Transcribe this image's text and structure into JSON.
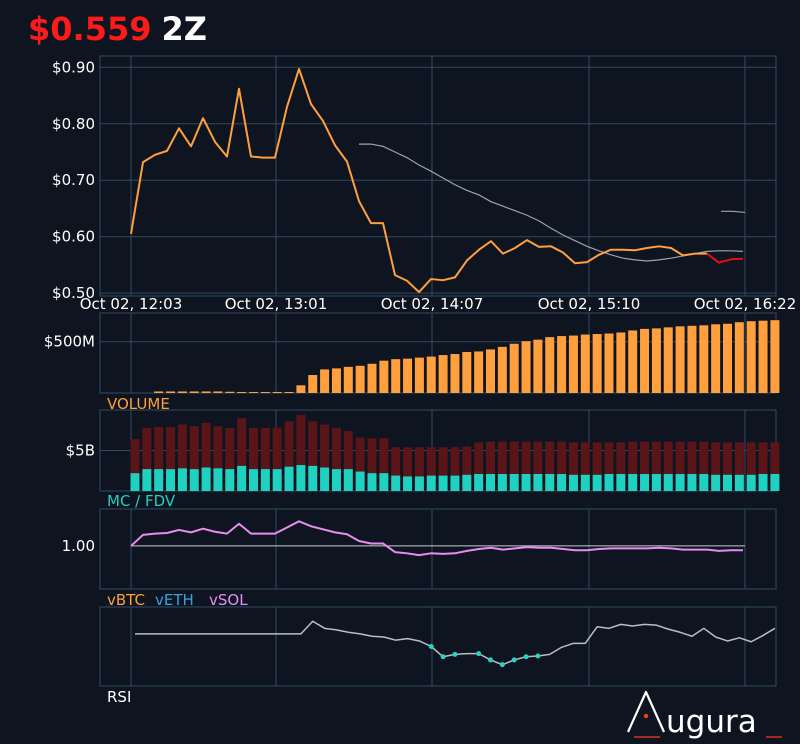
{
  "header": {
    "price": "$0.559",
    "ticker": "2Z"
  },
  "colors": {
    "background": "#0f1520",
    "grid": "#2e4a63",
    "price_line": "#ff9f3d",
    "price_line_recent": "#e01010",
    "moving_average": "#9aa3ad",
    "volume_bar": "#ff9f3d",
    "fdv_bar": "#5a1519",
    "mc_bar": "#1fd1c1",
    "vsol": "#e98cf0",
    "vbtc": "#ff9f3d",
    "veth": "#3aa0e0",
    "rsi_line": "#b8bec6",
    "rsi_dots": "#2ecfc4"
  },
  "panels": {
    "volume_label": "VOLUME",
    "mcfdv_label": "MC / FDV",
    "vbtc_label": "vBTC",
    "veth_label": "vETH",
    "vsol_label": "vSOL",
    "rsi_label": "RSI"
  },
  "logo": {
    "text": "ugura",
    "icon": "augura-a-icon"
  },
  "chart_data": [
    {
      "type": "line",
      "name": "price",
      "x_tick_labels": [
        "Oct 02, 12:03",
        "Oct 02, 13:01",
        "Oct 02, 14:07",
        "Oct 02, 15:10",
        "Oct 02, 16:22"
      ],
      "y_tick_labels": [
        "$0.50",
        "$0.60",
        "$0.70",
        "$0.80",
        "$0.90"
      ],
      "y_ticks": [
        0.5,
        0.6,
        0.7,
        0.8,
        0.9
      ],
      "ylim": [
        0.495,
        0.92
      ],
      "values": [
        0.605,
        0.732,
        0.745,
        0.752,
        0.792,
        0.76,
        0.81,
        0.768,
        0.742,
        0.862,
        0.742,
        0.74,
        0.74,
        0.83,
        0.897,
        0.835,
        0.805,
        0.762,
        0.733,
        0.663,
        0.624,
        0.624,
        0.532,
        0.522,
        0.502,
        0.525,
        0.523,
        0.528,
        0.558,
        0.577,
        0.592,
        0.57,
        0.58,
        0.594,
        0.582,
        0.583,
        0.572,
        0.553,
        0.555,
        0.568,
        0.577,
        0.577,
        0.576,
        0.58,
        0.583,
        0.58,
        0.567,
        0.57,
        0.57,
        0.554,
        0.56,
        0.561
      ],
      "recent_from_index": 48,
      "moving_average": [
        null,
        null,
        null,
        null,
        null,
        null,
        null,
        null,
        null,
        null,
        null,
        null,
        null,
        null,
        null,
        null,
        null,
        null,
        null,
        0.764,
        0.764,
        0.76,
        0.75,
        0.74,
        0.727,
        0.716,
        0.704,
        0.692,
        0.682,
        0.674,
        0.662,
        0.654,
        0.646,
        0.638,
        0.628,
        0.615,
        0.603,
        0.593,
        0.583,
        0.575,
        0.568,
        0.562,
        0.559,
        0.557,
        0.559,
        0.562,
        0.566,
        0.57,
        0.574,
        0.575,
        0.575,
        0.574
      ],
      "moving_average_tail": [
        0.645,
        0.645,
        0.643
      ]
    },
    {
      "type": "bar",
      "name": "volume",
      "y_tick_labels": [
        "$500M"
      ],
      "y_ticks": [
        500
      ],
      "ylim": [
        0,
        780
      ],
      "values": [
        0,
        0,
        15,
        15,
        15,
        15,
        15,
        15,
        12,
        10,
        10,
        10,
        10,
        10,
        75,
        175,
        230,
        240,
        255,
        265,
        285,
        315,
        330,
        335,
        345,
        355,
        370,
        380,
        400,
        405,
        425,
        450,
        480,
        505,
        520,
        545,
        555,
        560,
        570,
        575,
        580,
        590,
        610,
        625,
        630,
        640,
        650,
        655,
        660,
        670,
        675,
        690,
        700,
        705,
        710
      ]
    },
    {
      "type": "bar",
      "name": "mc_fdv",
      "y_tick_labels": [
        "$5B"
      ],
      "y_ticks": [
        5
      ],
      "ylim": [
        0,
        10
      ],
      "fdv": [
        6.4,
        7.8,
        7.9,
        7.9,
        8.2,
        8.0,
        8.4,
        8.0,
        7.8,
        9.0,
        7.8,
        7.8,
        7.8,
        8.6,
        9.4,
        8.6,
        8.2,
        7.8,
        7.4,
        6.6,
        6.5,
        6.5,
        5.4,
        5.4,
        5.4,
        5.4,
        5.4,
        5.4,
        5.5,
        6.0,
        6.1,
        6.1,
        6.1,
        6.1,
        6.1,
        6.1,
        6.1,
        6.0,
        6.0,
        6.0,
        6.0,
        6.0,
        6.1,
        6.1,
        6.1,
        6.1,
        6.1,
        6.1,
        6.1,
        6.0,
        6.0,
        6.0,
        6.0,
        6.0,
        6.0
      ],
      "mc": [
        2.2,
        2.7,
        2.7,
        2.7,
        2.8,
        2.7,
        2.9,
        2.8,
        2.7,
        3.1,
        2.7,
        2.7,
        2.7,
        3.0,
        3.2,
        3.1,
        2.9,
        2.7,
        2.7,
        2.4,
        2.2,
        2.2,
        1.9,
        1.8,
        1.8,
        1.9,
        1.9,
        1.9,
        2.0,
        2.1,
        2.1,
        2.1,
        2.1,
        2.1,
        2.1,
        2.1,
        2.1,
        2.0,
        2.0,
        2.0,
        2.1,
        2.1,
        2.1,
        2.1,
        2.1,
        2.1,
        2.1,
        2.1,
        2.1,
        2.0,
        2.0,
        2.0,
        2.0,
        2.1,
        2.1
      ]
    },
    {
      "type": "line",
      "name": "vsol",
      "y_tick_labels": [
        "1.00"
      ],
      "y_ticks": [
        1.0
      ],
      "ylim": [
        0.3,
        1.6
      ],
      "baseline": 1.0,
      "values": [
        1.0,
        1.18,
        1.2,
        1.21,
        1.26,
        1.22,
        1.28,
        1.23,
        1.2,
        1.36,
        1.2,
        1.2,
        1.2,
        1.3,
        1.4,
        1.32,
        1.27,
        1.22,
        1.19,
        1.08,
        1.04,
        1.04,
        0.9,
        0.88,
        0.85,
        0.88,
        0.87,
        0.88,
        0.92,
        0.95,
        0.97,
        0.94,
        0.96,
        0.98,
        0.97,
        0.97,
        0.95,
        0.93,
        0.93,
        0.95,
        0.96,
        0.96,
        0.96,
        0.96,
        0.97,
        0.96,
        0.94,
        0.94,
        0.94,
        0.92,
        0.93,
        0.93
      ]
    },
    {
      "type": "line",
      "name": "rsi",
      "ylim": [
        0,
        100
      ],
      "values": [
        66,
        66,
        66,
        66,
        66,
        66,
        66,
        66,
        66,
        66,
        66,
        66,
        66,
        66,
        66,
        82,
        73,
        71,
        68,
        66,
        63,
        62,
        58,
        60,
        57,
        50,
        37,
        40,
        41,
        41,
        33,
        27,
        33,
        37,
        38,
        40,
        49,
        54,
        54,
        75,
        73,
        78,
        76,
        78,
        77,
        72,
        68,
        63,
        73,
        62,
        57,
        61,
        56,
        64,
        73
      ],
      "oversold_dots": [
        25,
        26,
        27,
        29,
        30,
        31,
        32,
        33,
        34
      ]
    }
  ]
}
